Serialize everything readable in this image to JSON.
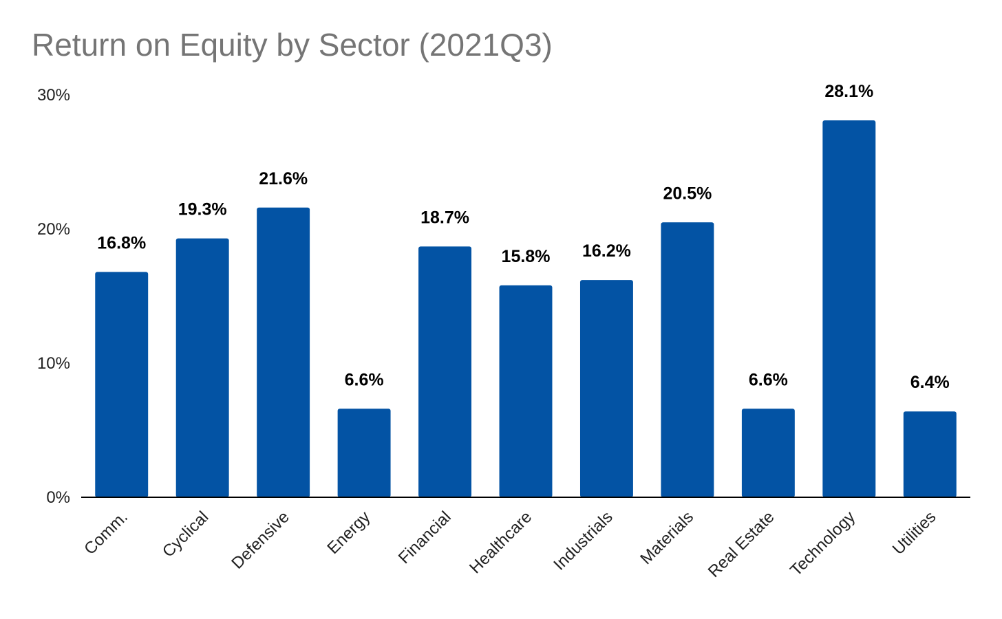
{
  "chart_data": {
    "type": "bar",
    "title": "Return on Equity by Sector (2021Q3)",
    "xlabel": "",
    "ylabel": "",
    "categories": [
      "Comm.",
      "Cyclical",
      "Defensive",
      "Energy",
      "Financial",
      "Healthcare",
      "Industrials",
      "Materials",
      "Real Estate",
      "Technology",
      "Utilities"
    ],
    "values": [
      16.8,
      19.3,
      21.6,
      6.6,
      18.7,
      15.8,
      16.2,
      20.5,
      6.6,
      28.1,
      6.4
    ],
    "data_labels": [
      "16.8%",
      "19.3%",
      "21.6%",
      "6.6%",
      "18.7%",
      "15.8%",
      "16.2%",
      "20.5%",
      "6.6%",
      "28.1%",
      "6.4%"
    ],
    "ylim": [
      0,
      30
    ],
    "yticks": [
      0,
      10,
      20,
      30
    ],
    "ytick_labels": [
      "0%",
      "10%",
      "20%",
      "30%"
    ],
    "grid": false,
    "legend": "none",
    "bar_color": "#0353A4"
  }
}
